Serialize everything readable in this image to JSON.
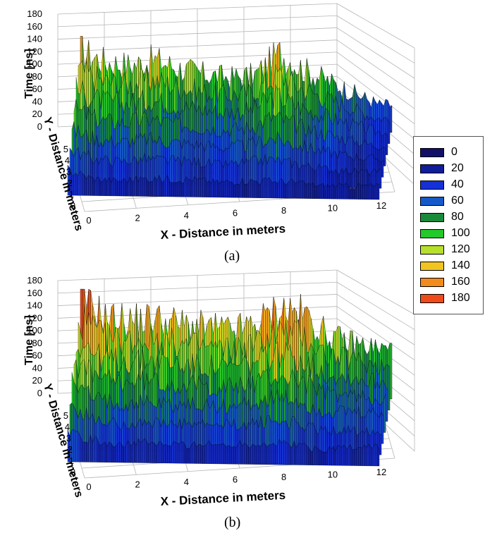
{
  "colors": {
    "grid": "#b5b5b5",
    "mesh_line": "#000000",
    "scale": [
      "#120f6b",
      "#101c99",
      "#1630d8",
      "#1659c8",
      "#188a3a",
      "#23c82a",
      "#b6e02c",
      "#f2c420",
      "#f28a1e",
      "#ee4a1a"
    ]
  },
  "legend": {
    "items": [
      {
        "label": "0",
        "color": "#120f6b"
      },
      {
        "label": "20",
        "color": "#101c99"
      },
      {
        "label": "40",
        "color": "#1630d8"
      },
      {
        "label": "60",
        "color": "#1659c8"
      },
      {
        "label": "80",
        "color": "#188a3a"
      },
      {
        "label": "100",
        "color": "#23c82a"
      },
      {
        "label": "120",
        "color": "#b6e02c"
      },
      {
        "label": "140",
        "color": "#f2c420"
      },
      {
        "label": "160",
        "color": "#f28a1e"
      },
      {
        "label": "180",
        "color": "#ee4a1a"
      }
    ]
  },
  "chart_data": [
    {
      "type": "surface",
      "caption": "(a)",
      "zlabel": "Time [ns]",
      "ylabel": "Y - Distance in meters",
      "xlabel": "X - Distance in meters",
      "z_ticks": [
        "180",
        "160",
        "140",
        "120",
        "100",
        "80",
        "60",
        "40",
        "20",
        "0"
      ],
      "y_ticks": [
        "5",
        "4",
        "3",
        "2",
        "1",
        "0"
      ],
      "x_ticks": [
        "0",
        "2",
        "4",
        "6",
        "8",
        "10",
        "12"
      ],
      "zlim": [
        0,
        180
      ],
      "ylim": [
        0,
        5
      ],
      "xlim": [
        0,
        12.5
      ],
      "x": [
        0,
        1,
        2,
        3,
        4,
        5,
        6,
        7,
        8,
        9,
        10,
        11,
        12
      ],
      "front_edge_time_ns": [
        30,
        15,
        12,
        15,
        18,
        20,
        15,
        18,
        12,
        15,
        12,
        15,
        20
      ],
      "peak_time_ns": [
        140,
        120,
        115,
        125,
        110,
        100,
        95,
        100,
        140,
        110,
        90,
        70,
        50
      ]
    },
    {
      "type": "surface",
      "caption": "(b)",
      "zlabel": "Time [ns]",
      "ylabel": "Y - Distance in meters",
      "xlabel": "X - Distance in meters",
      "z_ticks": [
        "180",
        "160",
        "140",
        "120",
        "100",
        "80",
        "60",
        "40",
        "20",
        "0"
      ],
      "y_ticks": [
        "5",
        "4",
        "3",
        "2",
        "1",
        "0"
      ],
      "x_ticks": [
        "0",
        "2",
        "4",
        "6",
        "8",
        "10",
        "12"
      ],
      "zlim": [
        0,
        180
      ],
      "ylim": [
        0,
        5
      ],
      "xlim": [
        0,
        12.5
      ],
      "x": [
        0,
        1,
        2,
        3,
        4,
        5,
        6,
        7,
        8,
        9,
        10,
        11,
        12
      ],
      "front_edge_time_ns": [
        40,
        20,
        15,
        18,
        15,
        20,
        18,
        20,
        15,
        18,
        15,
        20,
        25
      ],
      "peak_time_ns": [
        180,
        140,
        135,
        140,
        130,
        125,
        120,
        130,
        160,
        150,
        110,
        100,
        90
      ]
    }
  ]
}
